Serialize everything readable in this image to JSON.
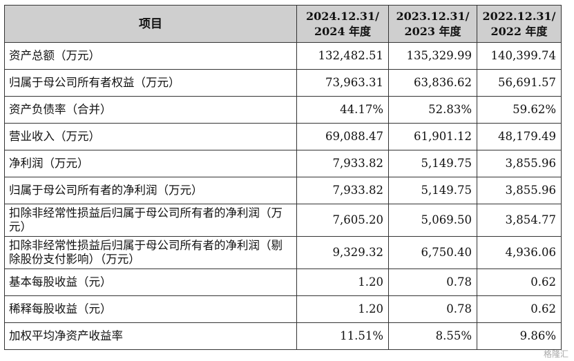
{
  "header": {
    "item": "项目",
    "cols": [
      "2024.12.31/",
      "2024 年度",
      "2023.12.31/",
      "2023 年度",
      "2022.12.31/",
      "2022 年度"
    ]
  },
  "rows": [
    {
      "label": "资产总额（万元）",
      "v": [
        "132,482.51",
        "135,329.99",
        "140,399.74"
      ]
    },
    {
      "label": "归属于母公司所有者权益（万元）",
      "v": [
        "73,963.31",
        "63,836.62",
        "56,691.57"
      ]
    },
    {
      "label": "资产负债率（合并）",
      "v": [
        "44.17%",
        "52.83%",
        "59.62%"
      ]
    },
    {
      "label": "营业收入（万元）",
      "v": [
        "69,088.47",
        "61,901.12",
        "48,179.49"
      ]
    },
    {
      "label": "净利润（万元）",
      "v": [
        "7,933.82",
        "5,149.75",
        "3,855.96"
      ]
    },
    {
      "label": "归属于母公司所有者的净利润（万元）",
      "v": [
        "7,933.82",
        "5,149.75",
        "3,855.96"
      ]
    },
    {
      "label": "扣除非经常性损益后归属于母公司所有者的净利润（万元）",
      "v": [
        "7,605.20",
        "5,069.50",
        "3,854.77"
      ]
    },
    {
      "label": "扣除非经常性损益后归属于母公司所有者的净利润（剔除股份支付影响）（万元）",
      "v": [
        "9,329.32",
        "6,750.40",
        "4,936.06"
      ]
    },
    {
      "label": "基本每股收益（元）",
      "v": [
        "1.20",
        "0.78",
        "0.62"
      ]
    },
    {
      "label": "稀释每股收益（元）",
      "v": [
        "1.20",
        "0.78",
        "0.62"
      ]
    },
    {
      "label": "加权平均净资产收益率",
      "v": [
        "11.51%",
        "8.55%",
        "9.86%"
      ]
    }
  ],
  "watermark": "格隆汇"
}
